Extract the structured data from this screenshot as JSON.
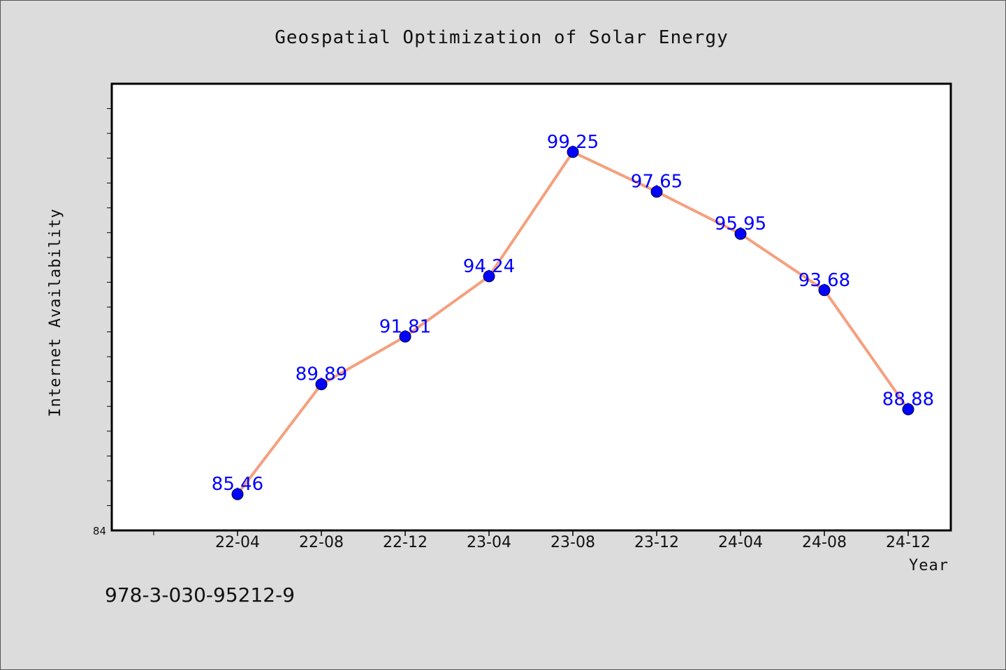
{
  "chart_data": {
    "type": "line",
    "title": "Geospatial Optimization of Solar Energy",
    "xlabel": "Year",
    "ylabel": "Internet Availability",
    "categories": [
      "22-04",
      "22-08",
      "22-12",
      "23-04",
      "23-08",
      "23-12",
      "24-04",
      "24-08",
      "24-12"
    ],
    "series": [
      {
        "values": [
          85.46,
          89.89,
          91.81,
          94.24,
          99.25,
          97.65,
          95.95,
          93.68,
          88.88
        ],
        "labels": [
          "85.46",
          "89.89",
          "91.81",
          "94.24",
          "99.25",
          "97.65",
          "95.95",
          "93.68",
          "88.88"
        ],
        "line_color": "#f4a07e",
        "marker_color": "#0000ff"
      }
    ],
    "ylim": [
      84,
      102
    ],
    "y_tick_min_label": "84",
    "grid": false,
    "legend": "none"
  },
  "footnote": "978-3-030-95212-9"
}
